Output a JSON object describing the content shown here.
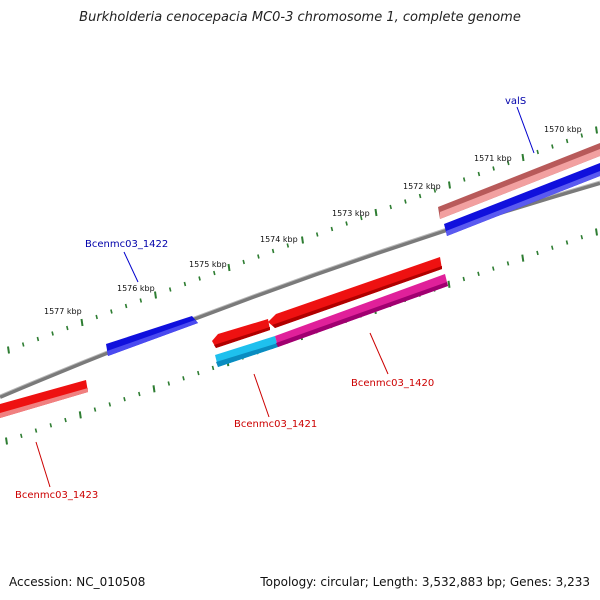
{
  "title": "Burkholderia cenocepacia MC0-3 chromosome 1, complete genome",
  "accession": "Accession: NC_010508",
  "topology": "Topology: circular; Length: 3,532,883 bp; Genes: 3,233",
  "colors": {
    "backbone": "#7a7a7a",
    "tick": "#2e7d32",
    "forward_gene": "#ee1111",
    "forward_gene_light": "#f08080",
    "reverse_gene": "#1010dd",
    "magenta_gene": "#e0209a",
    "cyan_gene": "#1ec0ee",
    "forward_label": "#cc0000",
    "reverse_label": "#0000aa"
  },
  "scale_labels": [
    "1570 kbp",
    "1571 kbp",
    "1572 kbp",
    "1573 kbp",
    "1574 kbp",
    "1575 kbp",
    "1576 kbp",
    "1577 kbp"
  ],
  "genes": {
    "valS": "valS",
    "bcenmc03_1422": "Bcenmc03_1422",
    "bcenmc03_1420": "Bcenmc03_1420",
    "bcenmc03_1421": "Bcenmc03_1421",
    "bcenmc03_1423": "Bcenmc03_1423"
  }
}
